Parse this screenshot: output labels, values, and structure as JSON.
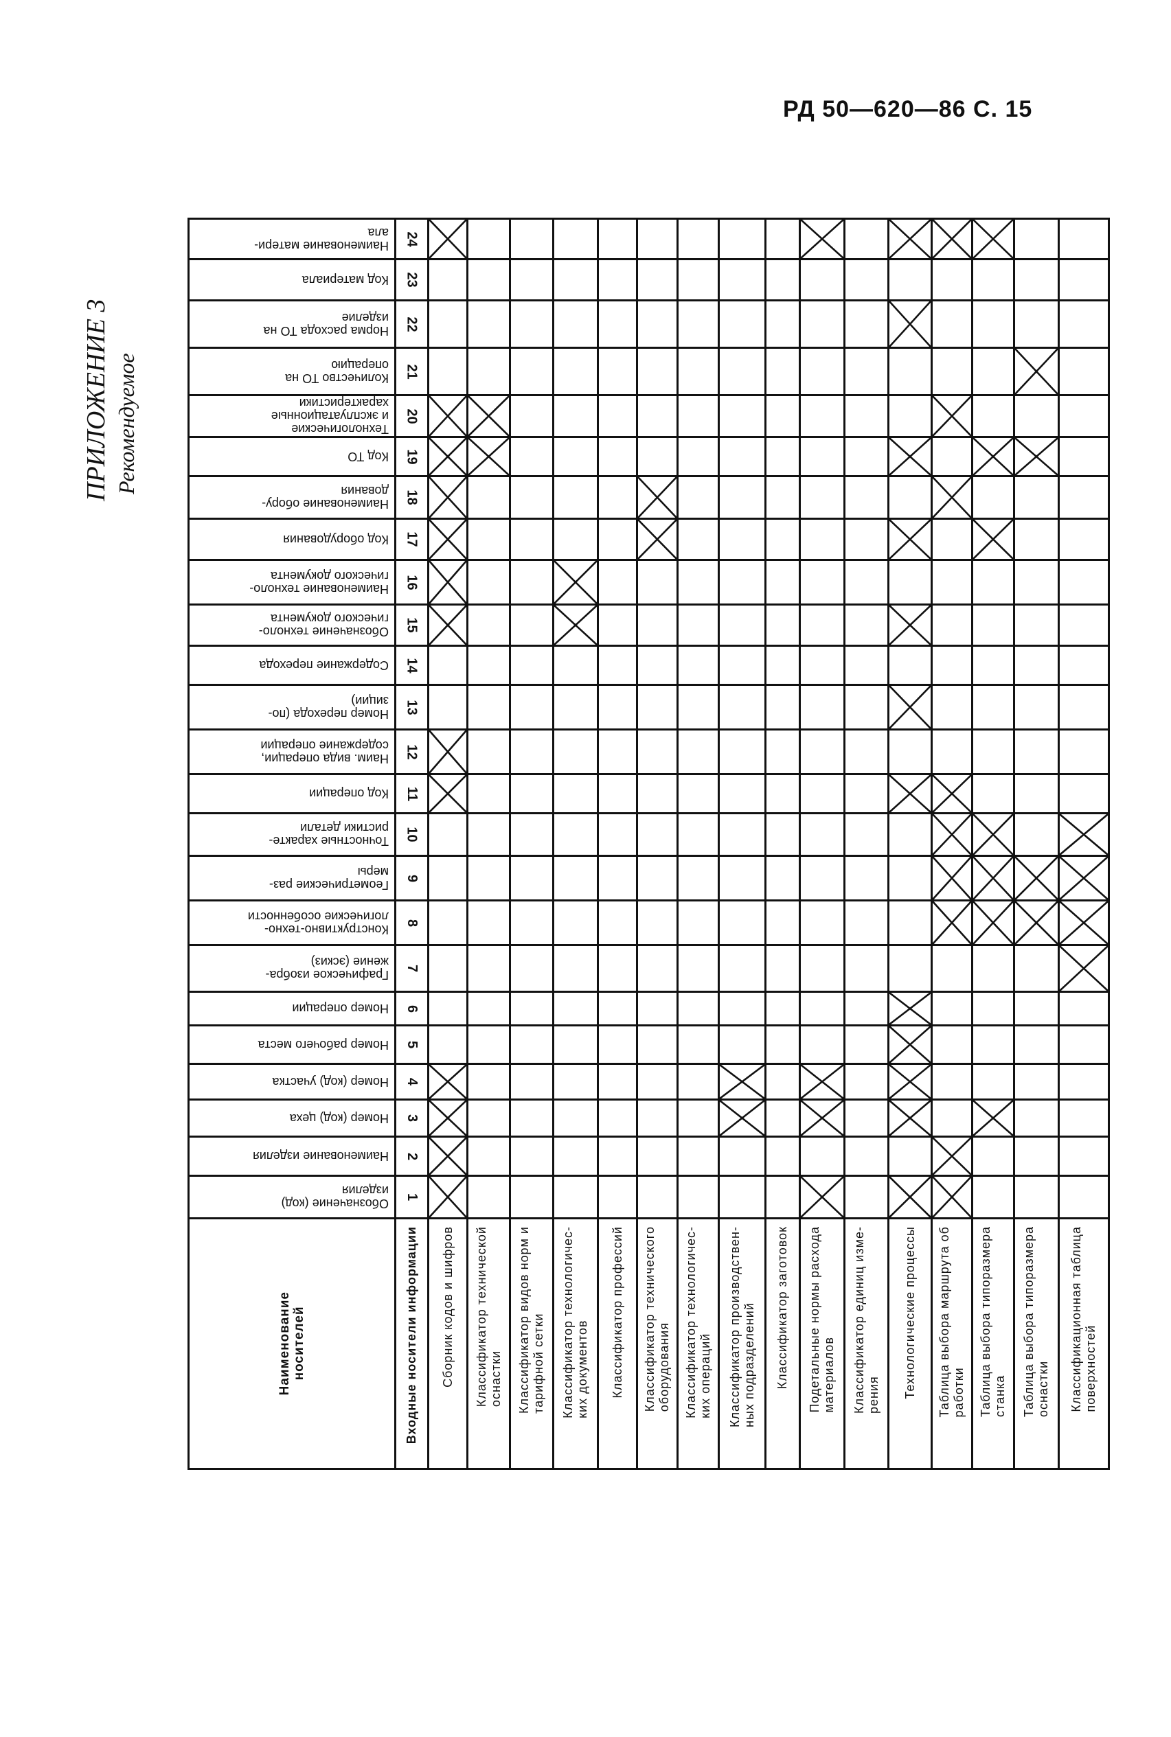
{
  "page_header": "РД 50—620—86 С. 15",
  "appendix": {
    "title": "ПРИЛОЖЕНИЕ 3",
    "subtitle": "Рекомендуемое"
  },
  "table": {
    "corner_label": "Наименование\nносителей",
    "input_header": "Входные носители информации",
    "carriers": [
      "Сборник кодов и шифров",
      "Классификатор технической\nоснастки",
      "Классификатор видов   норм и\nтарифной сетки",
      "Классификатор технологичес-\nких документов",
      "Классификатор профессий",
      "Классификатор технического\nоборудования",
      "Классификатор технологичес-\nких операций",
      "Классификатор производствен-\nных подразделений",
      "Классификатор заготовок",
      "Подетальные нормы расхода\nматериалов",
      "Классификатор единиц изме-\nрения",
      "Технологические процессы",
      "Таблица выбора маршрута об\nработки",
      "Таблица выбора типоразмера\nстанка",
      "Таблица выбора типоразмера\nоснастки",
      "Классификационная таблица\nповерхностей"
    ],
    "rows": [
      {
        "num": "24",
        "label": "Наименование матери-\nала",
        "marks": [
          1,
          10,
          12,
          13,
          14
        ]
      },
      {
        "num": "23",
        "label": "Код материала",
        "marks": []
      },
      {
        "num": "22",
        "label": "Норма расхода ТО на\nизделие",
        "marks": [
          12
        ]
      },
      {
        "num": "21",
        "label": "Количество ТО на\nоперацию",
        "marks": [
          15
        ]
      },
      {
        "num": "20",
        "label": "Технологические\nи эксплуатационные\nхарактеристики",
        "marks": [
          1,
          2,
          13
        ]
      },
      {
        "num": "19",
        "label": "Код ТО",
        "marks": [
          1,
          2,
          12,
          14,
          15
        ]
      },
      {
        "num": "18",
        "label": "Наименование обору-\nдования",
        "marks": [
          1,
          6,
          13
        ]
      },
      {
        "num": "17",
        "label": "Код оборудования",
        "marks": [
          1,
          6,
          12,
          14
        ]
      },
      {
        "num": "16",
        "label": "Наименование техноло-\nгического документа",
        "marks": [
          1,
          4
        ]
      },
      {
        "num": "15",
        "label": "Обозначение техноло-\nгического документа",
        "marks": [
          1,
          4,
          12
        ]
      },
      {
        "num": "14",
        "label": "Содержание перехода",
        "marks": []
      },
      {
        "num": "13",
        "label": "Номер перехода (по-\nзиции)",
        "marks": [
          12
        ]
      },
      {
        "num": "12",
        "label": "Наим. вида операции,\nсодержание операции",
        "marks": [
          1
        ]
      },
      {
        "num": "11",
        "label": "Код операции",
        "marks": [
          1,
          12,
          13
        ]
      },
      {
        "num": "10",
        "label": "Точностные характе-\nристики детали",
        "marks": [
          13,
          14,
          16
        ]
      },
      {
        "num": "9",
        "label": "Геометрические раз-\nмеры",
        "marks": [
          13,
          14,
          15,
          16
        ]
      },
      {
        "num": "8",
        "label": "Конструктивно-техно-\nлогические особенности",
        "marks": [
          13,
          14,
          15,
          16
        ]
      },
      {
        "num": "7",
        "label": "Графическое изобра-\nжение (эскиз)",
        "marks": [
          16
        ]
      },
      {
        "num": "6",
        "label": "Номер операции",
        "marks": [
          12
        ]
      },
      {
        "num": "5",
        "label": "Номер рабочего места",
        "marks": [
          12
        ]
      },
      {
        "num": "4",
        "label": "Номер (код) участка",
        "marks": [
          1,
          8,
          10,
          12
        ]
      },
      {
        "num": "3",
        "label": "Номер (код) цеха",
        "marks": [
          1,
          8,
          10,
          12,
          14
        ]
      },
      {
        "num": "2",
        "label": "Наименование изделия",
        "marks": [
          1,
          13
        ]
      },
      {
        "num": "1",
        "label": "Обозначение (код)\nизделия",
        "marks": [
          1,
          10,
          12,
          13
        ]
      }
    ]
  }
}
